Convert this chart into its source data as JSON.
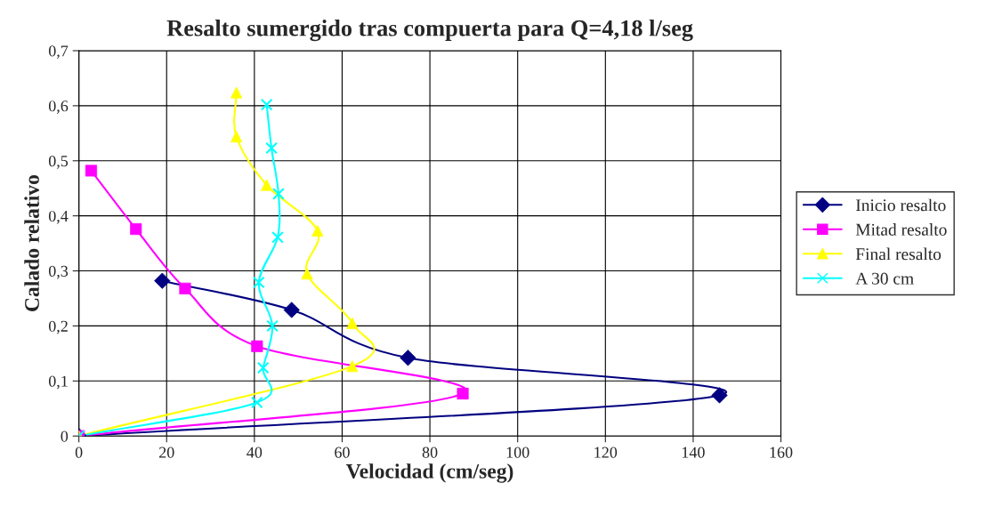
{
  "chart_data": {
    "type": "line",
    "title": "Resalto sumergido tras compuerta para Q=4,18 l/seg",
    "xlabel": "Velocidad (cm/seg)",
    "ylabel": "Calado relativo",
    "series": [
      {
        "name": "Inicio resalto",
        "color": "#000080",
        "marker": "diamond",
        "x": [
          0,
          146,
          75,
          48.5,
          19
        ],
        "values": [
          0,
          0.074,
          0.142,
          0.229,
          0.282
        ]
      },
      {
        "name": "Mitad resalto",
        "color": "#ff00ff",
        "marker": "square",
        "x": [
          0,
          87.5,
          40.6,
          24.2,
          13,
          2.8
        ],
        "values": [
          0,
          0.077,
          0.163,
          0.268,
          0.376,
          0.482
        ]
      },
      {
        "name": "Final resalto",
        "color": "#ffff00",
        "marker": "triangle",
        "x": [
          0,
          62.3,
          62.3,
          52,
          54.4,
          42.8,
          35.9,
          35.9
        ],
        "values": [
          0,
          0.127,
          0.205,
          0.295,
          0.373,
          0.456,
          0.544,
          0.624
        ]
      },
      {
        "name": "A 30 cm",
        "color": "#00ffff",
        "marker": "cross",
        "x": [
          0,
          40.6,
          42,
          44.1,
          41,
          45.3,
          45.5,
          43.9,
          42.8
        ],
        "values": [
          0,
          0.061,
          0.124,
          0.2,
          0.279,
          0.361,
          0.44,
          0.523,
          0.602
        ]
      }
    ],
    "xlim": [
      0,
      160
    ],
    "xticks": [
      0,
      20,
      40,
      60,
      80,
      100,
      120,
      140,
      160
    ],
    "ylim": [
      0,
      0.7
    ],
    "yticks": [
      {
        "value": 0,
        "label": "0"
      },
      {
        "value": 0.1,
        "label": "0,1"
      },
      {
        "value": 0.2,
        "label": "0,2"
      },
      {
        "value": 0.3,
        "label": "0,3"
      },
      {
        "value": 0.4,
        "label": "0,4"
      },
      {
        "value": 0.5,
        "label": "0,5"
      },
      {
        "value": 0.6,
        "label": "0,6"
      },
      {
        "value": 0.7,
        "label": "0,7"
      }
    ],
    "grid": true,
    "legend": "right",
    "line_style": "solid"
  }
}
